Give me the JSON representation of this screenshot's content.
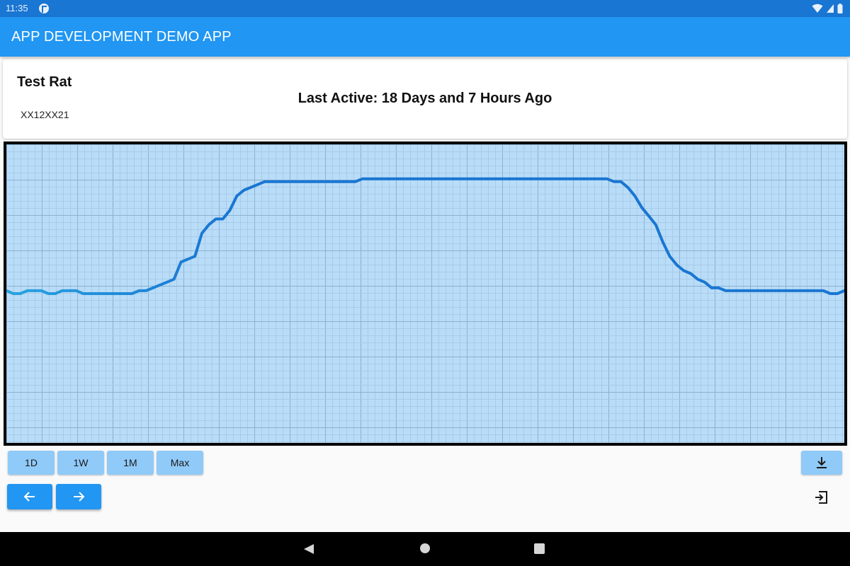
{
  "status_bar": {
    "time": "11:35",
    "icons": [
      "app-notification-icon",
      "wifi-icon",
      "signal-icon",
      "battery-icon"
    ]
  },
  "app_bar": {
    "title": "APP DEVELOPMENT DEMO APP"
  },
  "info_card": {
    "name": "Test Rat",
    "id": "XX12XX21",
    "last_active": "Last Active: 18 Days and 7 Hours Ago"
  },
  "chart_data": {
    "type": "line",
    "grid": true,
    "background": "#b9dcf8",
    "line_color": "#1976d2",
    "x": [
      0,
      1,
      2,
      3,
      4,
      5,
      6,
      7,
      8,
      9,
      10,
      11,
      12,
      13,
      14,
      15,
      16,
      17,
      18,
      19,
      20,
      21,
      22,
      23,
      24,
      25,
      26,
      27,
      28,
      29,
      30,
      31,
      32,
      33,
      34,
      35,
      36,
      37,
      38,
      39,
      40,
      41,
      42,
      43,
      44,
      45,
      46,
      47,
      48,
      49,
      50,
      51,
      52,
      53,
      54,
      55,
      56,
      57,
      58,
      59,
      60,
      61,
      62,
      63,
      64,
      65,
      66,
      67,
      68,
      69,
      70,
      71,
      72,
      73,
      74,
      75,
      76,
      77,
      78,
      79,
      80,
      81,
      82,
      83,
      84,
      85,
      86,
      87,
      88,
      89,
      90,
      91,
      92,
      93,
      94,
      95,
      96,
      97,
      98,
      99,
      100,
      101,
      102,
      103,
      104,
      105,
      106,
      107,
      108,
      109,
      110,
      111,
      112,
      113,
      114,
      115,
      116,
      117,
      118,
      119,
      120
    ],
    "values": [
      19.3,
      19.2,
      19.2,
      19.3,
      19.3,
      19.3,
      19.2,
      19.2,
      19.3,
      19.3,
      19.3,
      19.2,
      19.2,
      19.2,
      19.2,
      19.2,
      19.2,
      19.2,
      19.2,
      19.3,
      19.3,
      19.4,
      19.5,
      19.6,
      19.7,
      20.3,
      20.4,
      20.5,
      21.3,
      21.6,
      21.8,
      21.8,
      22.1,
      22.6,
      22.8,
      22.9,
      23.0,
      23.1,
      23.1,
      23.1,
      23.1,
      23.1,
      23.1,
      23.1,
      23.1,
      23.1,
      23.1,
      23.1,
      23.1,
      23.1,
      23.1,
      23.2,
      23.2,
      23.2,
      23.2,
      23.2,
      23.2,
      23.2,
      23.2,
      23.2,
      23.2,
      23.2,
      23.2,
      23.2,
      23.2,
      23.2,
      23.2,
      23.2,
      23.2,
      23.2,
      23.2,
      23.2,
      23.2,
      23.2,
      23.2,
      23.2,
      23.2,
      23.2,
      23.2,
      23.2,
      23.2,
      23.2,
      23.2,
      23.2,
      23.2,
      23.2,
      23.2,
      23.1,
      23.1,
      22.9,
      22.6,
      22.2,
      21.9,
      21.6,
      21.0,
      20.5,
      20.2,
      20.0,
      19.9,
      19.7,
      19.6,
      19.4,
      19.4,
      19.3,
      19.3,
      19.3,
      19.3,
      19.3,
      19.3,
      19.3,
      19.3,
      19.3,
      19.3,
      19.3,
      19.3,
      19.3,
      19.3,
      19.3,
      19.2,
      19.2,
      19.3
    ],
    "ylim": [
      14,
      24.4
    ]
  },
  "controls": {
    "range_buttons": [
      "1D",
      "1W",
      "1M",
      "Max"
    ],
    "download_icon": "download-icon",
    "prev_icon": "arrow-left-icon",
    "next_icon": "arrow-right-icon",
    "logout_icon": "logout-icon"
  },
  "colors": {
    "accent": "#2196f3",
    "status_bar": "#1976d2",
    "button_light": "#90caf9",
    "chart_bg": "#b9dcf8"
  }
}
